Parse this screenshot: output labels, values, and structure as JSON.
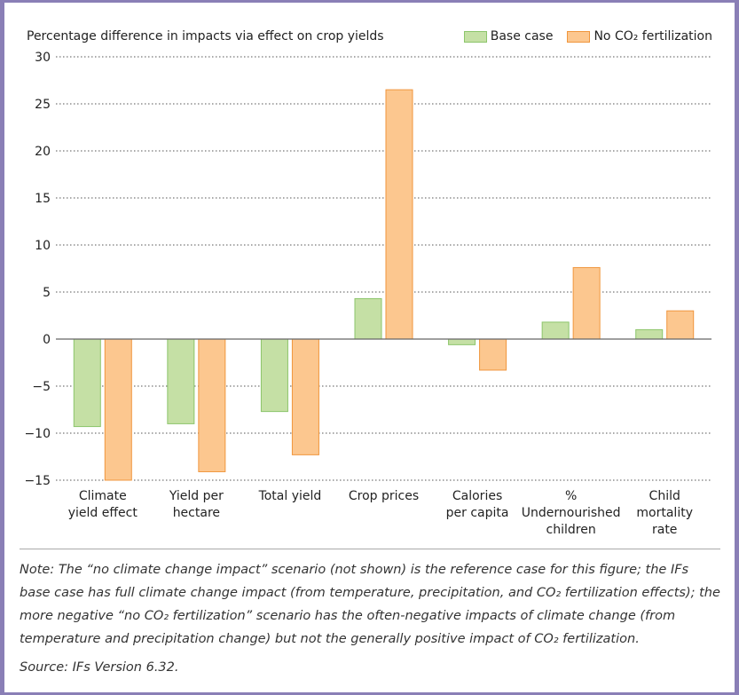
{
  "chart_data": {
    "type": "bar",
    "title": "Percentage difference in impacts via effect on crop yields",
    "categories": [
      [
        "Climate",
        "yield effect"
      ],
      [
        "Yield per",
        "hectare"
      ],
      [
        "Total yield"
      ],
      [
        "Crop prices"
      ],
      [
        "Calories",
        "per capita"
      ],
      [
        "%",
        "Undernourished",
        "children"
      ],
      [
        "Child",
        "mortality",
        "rate"
      ]
    ],
    "series": [
      {
        "name": "Base case",
        "color": "#c5e0a5",
        "stroke": "#8cc56b",
        "values": [
          -9.3,
          -9.0,
          -7.7,
          4.3,
          -0.6,
          1.8,
          1.0
        ]
      },
      {
        "name": "No CO₂ fertilization",
        "color": "#fcc78f",
        "stroke": "#f0963d",
        "values": [
          -15.0,
          -14.1,
          -12.3,
          26.5,
          -3.3,
          7.6,
          3.0
        ]
      }
    ],
    "ylim": [
      -15,
      30
    ],
    "yticks": [
      "30",
      "25",
      "20",
      "15",
      "10",
      "5",
      "0",
      "−5",
      "−10",
      "−15"
    ],
    "grid": true,
    "legend_position": "top-right"
  },
  "legend": {
    "base_label": "Base case",
    "noco2_label": "No CO₂ fertilization"
  },
  "notes": {
    "note": "Note: The “no climate change impact” scenario (not shown) is the reference case for this figure; the IFs base case has full climate change impact (from temperature, precipitation, and CO₂ fertilization effects); the more negative “no CO₂ fertilization” scenario has the often-negative impacts of climate change (from temperature and precipitation change) but not the generally positive impact of CO₂ fertilization.",
    "source": "Source: IFs Version 6.32."
  }
}
